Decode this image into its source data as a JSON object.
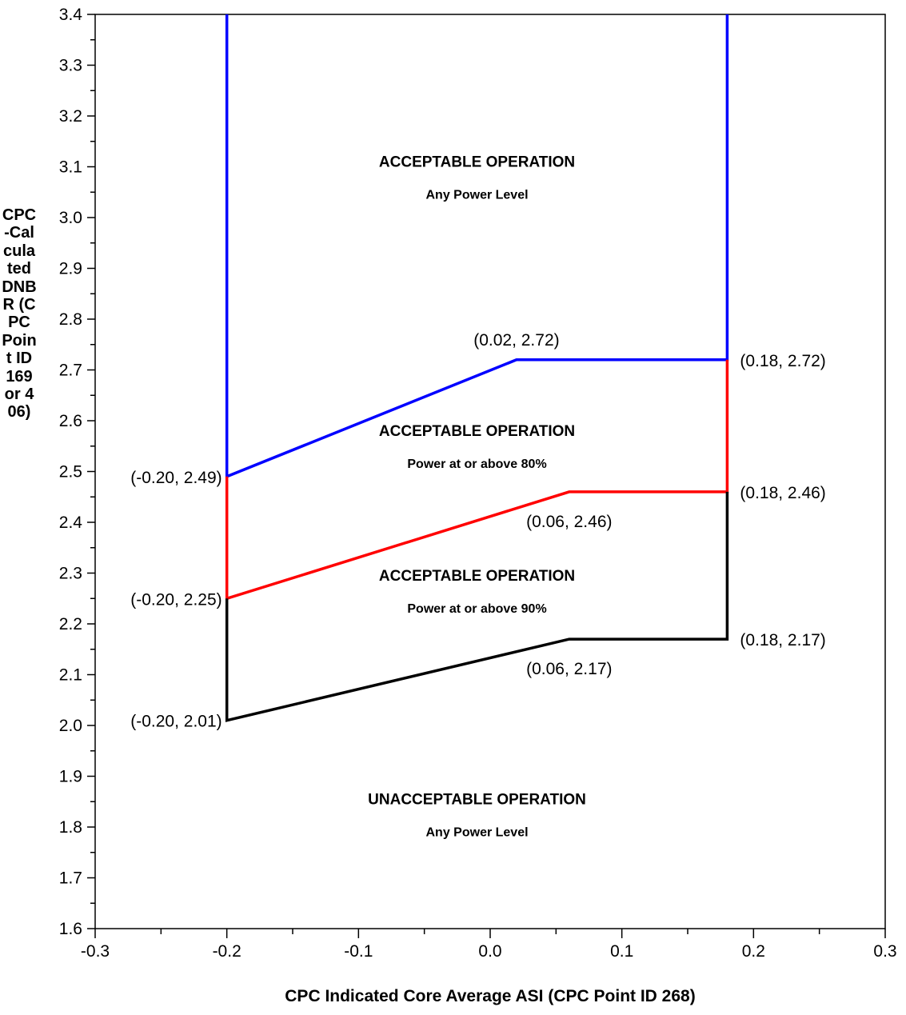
{
  "chart_data": {
    "type": "line",
    "xlabel": "CPC Indicated Core Average ASI (CPC Point ID 268)",
    "ylabel": "CPC-Calculated DNBR (CPC Point ID 169 or 406)",
    "xlim": [
      -0.3,
      0.3
    ],
    "ylim": [
      1.6,
      3.4
    ],
    "x_ticks": [
      "-0.3",
      "-0.2",
      "-0.1",
      "0.0",
      "0.1",
      "0.2",
      "0.3"
    ],
    "y_ticks": [
      "1.6",
      "1.7",
      "1.8",
      "1.9",
      "2.0",
      "2.1",
      "2.2",
      "2.3",
      "2.4",
      "2.5",
      "2.6",
      "2.7",
      "2.8",
      "2.9",
      "3.0",
      "3.1",
      "3.2",
      "3.3",
      "3.4"
    ],
    "grid": false,
    "series": [
      {
        "color": "#0000ff",
        "points": [
          [
            -0.2,
            3.4
          ],
          [
            -0.2,
            2.49
          ],
          [
            0.02,
            2.72
          ],
          [
            0.18,
            2.72
          ],
          [
            0.18,
            3.4
          ]
        ]
      },
      {
        "color": "#ff0000",
        "points": [
          [
            -0.2,
            2.49
          ],
          [
            -0.2,
            2.25
          ],
          [
            0.06,
            2.46
          ],
          [
            0.18,
            2.46
          ],
          [
            0.18,
            2.72
          ]
        ]
      },
      {
        "color": "#000000",
        "points": [
          [
            -0.2,
            2.25
          ],
          [
            -0.2,
            2.01
          ],
          [
            0.06,
            2.17
          ],
          [
            0.18,
            2.17
          ],
          [
            0.18,
            2.46
          ]
        ]
      }
    ],
    "point_labels": [
      {
        "text": "(0.02, 2.72)",
        "x": 0.02,
        "y": 2.72,
        "anchor": "above"
      },
      {
        "text": "(0.18, 2.72)",
        "x": 0.18,
        "y": 2.72,
        "anchor": "right"
      },
      {
        "text": "(-0.20, 2.49)",
        "x": -0.2,
        "y": 2.49,
        "anchor": "left"
      },
      {
        "text": "(0.18, 2.46)",
        "x": 0.18,
        "y": 2.46,
        "anchor": "right"
      },
      {
        "text": "(0.06, 2.46)",
        "x": 0.06,
        "y": 2.46,
        "anchor": "below"
      },
      {
        "text": "(-0.20, 2.25)",
        "x": -0.2,
        "y": 2.25,
        "anchor": "left"
      },
      {
        "text": "(0.18, 2.17)",
        "x": 0.18,
        "y": 2.17,
        "anchor": "right"
      },
      {
        "text": "(0.06, 2.17)",
        "x": 0.06,
        "y": 2.17,
        "anchor": "below"
      },
      {
        "text": "(-0.20, 2.01)",
        "x": -0.2,
        "y": 2.01,
        "anchor": "left"
      }
    ],
    "regions": [
      {
        "title": "ACCEPTABLE OPERATION",
        "subtitle": "Any Power Level",
        "x": -0.01,
        "y": 3.1
      },
      {
        "title": "ACCEPTABLE OPERATION",
        "subtitle": "Power at or above 80%",
        "x": -0.01,
        "y": 2.57
      },
      {
        "title": "ACCEPTABLE OPERATION",
        "subtitle": "Power at or above 90%",
        "x": -0.01,
        "y": 2.285
      },
      {
        "title": "UNACCEPTABLE OPERATION",
        "subtitle": "Any Power Level",
        "x": -0.01,
        "y": 1.845
      }
    ]
  }
}
